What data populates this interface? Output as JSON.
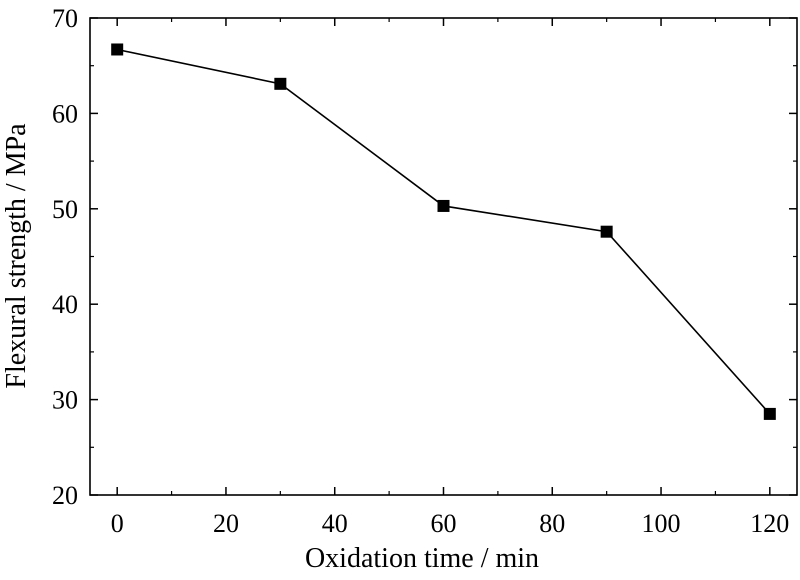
{
  "chart_data": {
    "type": "line",
    "title": "",
    "xlabel": "Oxidation time / min",
    "ylabel": "Flexural strength / MPa",
    "xlim": [
      -5,
      125
    ],
    "ylim": [
      20,
      70
    ],
    "xticks": [
      0,
      20,
      40,
      60,
      80,
      100,
      120
    ],
    "yticks": [
      20,
      30,
      40,
      50,
      60,
      70
    ],
    "x_tick_labels": [
      "0",
      "20",
      "40",
      "60",
      "80",
      "100",
      "120"
    ],
    "y_tick_labels": [
      "20",
      "30",
      "40",
      "50",
      "60",
      "70"
    ],
    "grid": false,
    "legend": "none",
    "series": [
      {
        "marker": "square",
        "color": "#000000",
        "x": [
          0,
          30,
          60,
          90,
          120
        ],
        "y": [
          66.7,
          63.1,
          50.3,
          47.6,
          28.5
        ]
      }
    ]
  }
}
